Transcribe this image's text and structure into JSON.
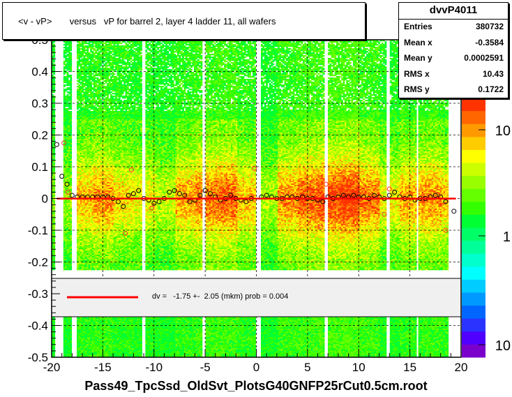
{
  "title": "<v - vP>       versus   vP for barrel 2, layer 4 ladder 11, all wafers",
  "stats": {
    "name": "dvvP4011",
    "rows": [
      {
        "label": "Entries",
        "value": "380732"
      },
      {
        "label": "Mean x",
        "value": "-0.3584"
      },
      {
        "label": "Mean y",
        "value": "0.0002591"
      },
      {
        "label": "RMS x",
        "value": "10.43"
      },
      {
        "label": "RMS y",
        "value": "0.1722"
      }
    ]
  },
  "fit_label": "dv =   -1.75 +-  2.05 (mkm) prob = 0.004",
  "xlabel": "Pass49_TpcSsd_OldSvt_PlotsG40GNFP25rCut0.5cm.root",
  "colors": {
    "fit_line": "#ff0000",
    "frame": "#000000",
    "legend_bg": "#f0f0f0"
  },
  "chart_data": {
    "type": "heatmap",
    "xlim": [
      -20,
      20
    ],
    "ylim": [
      -0.5,
      0.5
    ],
    "x_ticks": [
      -20,
      -15,
      -10,
      -5,
      0,
      5,
      10,
      15,
      20
    ],
    "y_ticks": [
      -0.5,
      -0.4,
      -0.3,
      -0.2,
      -0.1,
      0,
      0.1,
      0.2,
      0.3,
      0.4,
      0.5
    ],
    "x_tick_labels": [
      "-20",
      "-15",
      "-10",
      "-5",
      "0",
      "5",
      "10",
      "15",
      "20"
    ],
    "y_tick_labels": [
      "-0.5",
      "-0.4",
      "-0.3",
      "-0.2",
      "-0.1",
      "0",
      "0.1",
      "0.2",
      "0.3",
      "0.4",
      "0.5"
    ],
    "grid": true,
    "colorbar": {
      "scale": "log",
      "tick_labels": [
        "10",
        "1",
        "10"
      ]
    },
    "fit": {
      "dv": -1.75,
      "err": 2.05,
      "prob": 0.004
    },
    "profile_points": [
      {
        "x": -19.5,
        "y": 0.17
      },
      {
        "x": -19.0,
        "y": 0.07
      },
      {
        "x": -18.5,
        "y": 0.045
      },
      {
        "x": -18.0,
        "y": 0.01
      },
      {
        "x": -17.5,
        "y": 0.005
      },
      {
        "x": -17.0,
        "y": 0.005
      },
      {
        "x": -16.5,
        "y": 0.005
      },
      {
        "x": -16.0,
        "y": 0.005
      },
      {
        "x": -15.5,
        "y": 0.005
      },
      {
        "x": -15.0,
        "y": 0.005
      },
      {
        "x": -14.5,
        "y": 0.005
      },
      {
        "x": -14.0,
        "y": 0.0
      },
      {
        "x": -13.5,
        "y": -0.01
      },
      {
        "x": -13.0,
        "y": -0.025
      },
      {
        "x": -12.5,
        "y": 0.01
      },
      {
        "x": -12.0,
        "y": 0.015
      },
      {
        "x": -11.5,
        "y": 0.025
      },
      {
        "x": -11.0,
        "y": 0.0
      },
      {
        "x": -10.5,
        "y": -0.005
      },
      {
        "x": -10.0,
        "y": -0.015
      },
      {
        "x": -9.5,
        "y": -0.01
      },
      {
        "x": -9.0,
        "y": 0.0
      },
      {
        "x": -8.5,
        "y": 0.02
      },
      {
        "x": -8.0,
        "y": 0.025
      },
      {
        "x": -7.5,
        "y": 0.015
      },
      {
        "x": -7.0,
        "y": 0.01
      },
      {
        "x": -6.5,
        "y": -0.01
      },
      {
        "x": -6.0,
        "y": -0.005
      },
      {
        "x": -5.5,
        "y": 0.01
      },
      {
        "x": -5.0,
        "y": 0.025
      },
      {
        "x": -4.5,
        "y": 0.015
      },
      {
        "x": -4.0,
        "y": 0.005
      },
      {
        "x": -3.5,
        "y": -0.005
      },
      {
        "x": -3.0,
        "y": 0.0
      },
      {
        "x": -2.5,
        "y": 0.01
      },
      {
        "x": -2.0,
        "y": 0.0
      },
      {
        "x": -1.5,
        "y": -0.005
      },
      {
        "x": -1.0,
        "y": -0.01
      },
      {
        "x": -0.5,
        "y": 0.0
      },
      {
        "x": 0.5,
        "y": 0.005
      },
      {
        "x": 1.0,
        "y": 0.01
      },
      {
        "x": 1.5,
        "y": 0.005
      },
      {
        "x": 2.0,
        "y": 0.0
      },
      {
        "x": 2.5,
        "y": 0.0
      },
      {
        "x": 3.0,
        "y": 0.005
      },
      {
        "x": 3.5,
        "y": 0.005
      },
      {
        "x": 4.0,
        "y": 0.0
      },
      {
        "x": 4.5,
        "y": 0.005
      },
      {
        "x": 5.0,
        "y": 0.0
      },
      {
        "x": 5.5,
        "y": 0.0
      },
      {
        "x": 6.0,
        "y": -0.005
      },
      {
        "x": 6.5,
        "y": -0.01
      },
      {
        "x": 7.0,
        "y": 0.005
      },
      {
        "x": 7.5,
        "y": 0.0
      },
      {
        "x": 8.0,
        "y": 0.005
      },
      {
        "x": 8.5,
        "y": 0.01
      },
      {
        "x": 9.0,
        "y": 0.005
      },
      {
        "x": 9.5,
        "y": 0.01
      },
      {
        "x": 10.0,
        "y": 0.005
      },
      {
        "x": 10.5,
        "y": 0.005
      },
      {
        "x": 11.0,
        "y": 0.0
      },
      {
        "x": 11.5,
        "y": 0.01
      },
      {
        "x": 12.0,
        "y": 0.005
      },
      {
        "x": 12.5,
        "y": 0.0
      },
      {
        "x": 13.0,
        "y": 0.01
      },
      {
        "x": 13.5,
        "y": 0.02
      },
      {
        "x": 14.0,
        "y": 0.005
      },
      {
        "x": 14.5,
        "y": 0.0
      },
      {
        "x": 15.0,
        "y": 0.005
      },
      {
        "x": 15.5,
        "y": -0.005
      },
      {
        "x": 16.0,
        "y": 0.0
      },
      {
        "x": 16.5,
        "y": 0.0
      },
      {
        "x": 17.0,
        "y": 0.005
      },
      {
        "x": 17.5,
        "y": 0.01
      },
      {
        "x": 18.0,
        "y": 0.005
      },
      {
        "x": 18.5,
        "y": -0.01
      },
      {
        "x": 19.3,
        "y": -0.04
      }
    ],
    "outlier_points": [
      {
        "x": -18.8,
        "y": 0.175
      },
      {
        "x": -18.4,
        "y": 0.02
      },
      {
        "x": -12.8,
        "y": -0.11
      },
      {
        "x": -12.2,
        "y": 0.09
      },
      {
        "x": -10.2,
        "y": -0.03
      },
      {
        "x": -6.5,
        "y": 0.05
      },
      {
        "x": -0.2,
        "y": 0.095
      },
      {
        "x": 6.3,
        "y": -0.09
      },
      {
        "x": 6.8,
        "y": 0.045
      },
      {
        "x": 12.5,
        "y": -0.05
      },
      {
        "x": 13.0,
        "y": 0.03
      },
      {
        "x": 18.5,
        "y": -0.1
      }
    ]
  }
}
